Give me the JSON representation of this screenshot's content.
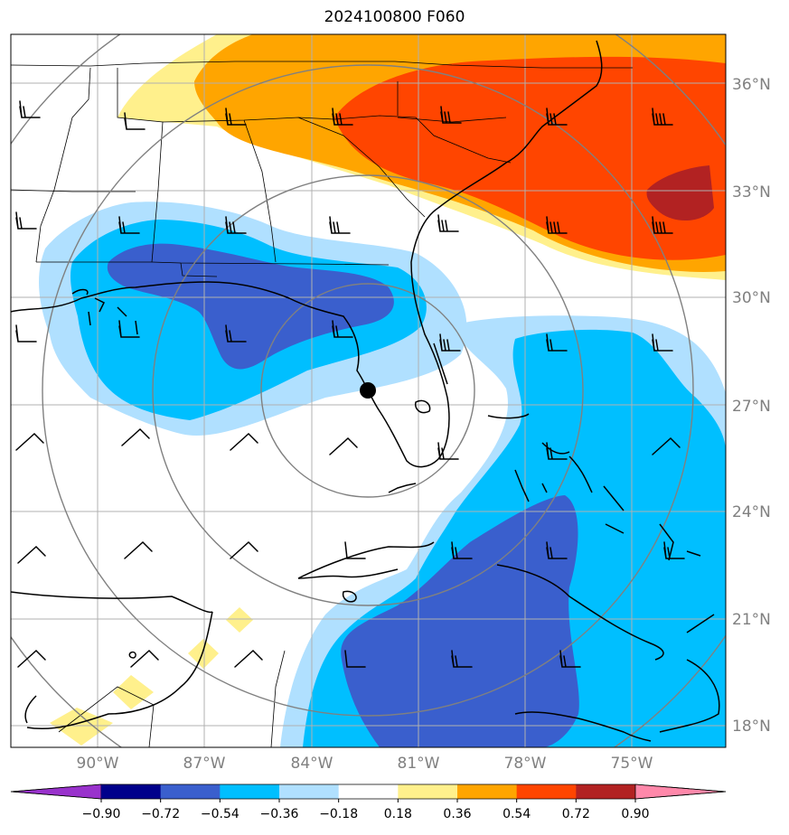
{
  "title": "2024100800 F060",
  "lon_labels": [
    "90°W",
    "87°W",
    "84°W",
    "81°W",
    "78°W",
    "75°W"
  ],
  "lat_labels": [
    "36°N",
    "33°N",
    "30°N",
    "27°N",
    "24°N",
    "21°N",
    "18°N"
  ],
  "colorbar": {
    "labels": [
      "−0.90",
      "−0.72",
      "−0.54",
      "−0.36",
      "−0.18",
      "0.18",
      "0.36",
      "0.54",
      "0.72",
      "0.90"
    ],
    "colors": [
      "#9932cc",
      "#00008b",
      "#3a5fcd",
      "#00bfff",
      "#b0e0ff",
      "#ffffff",
      "#fff08c",
      "#ffa500",
      "#ff4500",
      "#b22222",
      "#ff88aa"
    ]
  },
  "colors": {
    "neg_deep": "#3a5fcd",
    "neg_mid": "#00bfff",
    "neg_light": "#b0e0ff",
    "pos_light": "#fff08c",
    "pos_mid": "#ffa500",
    "pos_high": "#ff4500",
    "pos_max": "#b22222",
    "grid": "#b0b0b0",
    "range_ring": "#808080"
  },
  "marker": {
    "name": "storm-center",
    "lon": -82.2,
    "lat": 27.4
  }
}
